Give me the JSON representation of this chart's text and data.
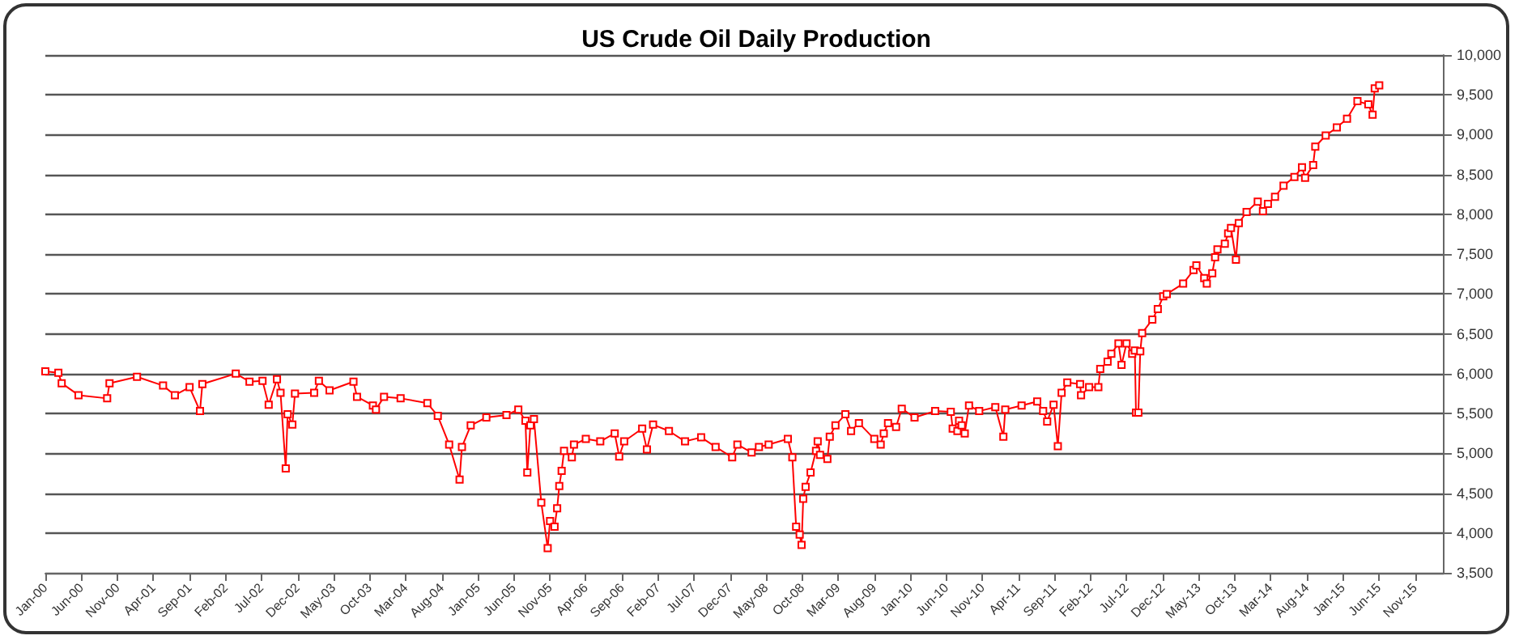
{
  "chart_data": {
    "type": "line",
    "title": "US Crude Oil Daily Production",
    "grid": "y",
    "marker": "square",
    "line_style": "solid",
    "xlim": [
      "2000-01-01",
      "2016-03-01"
    ],
    "xticks": [
      {
        "value": "2000-01",
        "label": "Jan-00"
      },
      {
        "value": "2000-06",
        "label": "Jun-00"
      },
      {
        "value": "2000-11",
        "label": "Nov-00"
      },
      {
        "value": "2001-04",
        "label": "Apr-01"
      },
      {
        "value": "2001-09",
        "label": "Sep-01"
      },
      {
        "value": "2002-02",
        "label": "Feb-02"
      },
      {
        "value": "2002-07",
        "label": "Jul-02"
      },
      {
        "value": "2002-12",
        "label": "Dec-02"
      },
      {
        "value": "2003-05",
        "label": "May-03"
      },
      {
        "value": "2003-10",
        "label": "Oct-03"
      },
      {
        "value": "2004-03",
        "label": "Mar-04"
      },
      {
        "value": "2004-08",
        "label": "Aug-04"
      },
      {
        "value": "2005-01",
        "label": "Jan-05"
      },
      {
        "value": "2005-06",
        "label": "Jun-05"
      },
      {
        "value": "2005-11",
        "label": "Nov-05"
      },
      {
        "value": "2006-04",
        "label": "Apr-06"
      },
      {
        "value": "2006-09",
        "label": "Sep-06"
      },
      {
        "value": "2007-02",
        "label": "Feb-07"
      },
      {
        "value": "2007-07",
        "label": "Jul-07"
      },
      {
        "value": "2007-12",
        "label": "Dec-07"
      },
      {
        "value": "2008-05",
        "label": "May-08"
      },
      {
        "value": "2008-10",
        "label": "Oct-08"
      },
      {
        "value": "2009-03",
        "label": "Mar-09"
      },
      {
        "value": "2009-08",
        "label": "Aug-09"
      },
      {
        "value": "2010-01",
        "label": "Jan-10"
      },
      {
        "value": "2010-06",
        "label": "Jun-10"
      },
      {
        "value": "2010-11",
        "label": "Nov-10"
      },
      {
        "value": "2011-04",
        "label": "Apr-11"
      },
      {
        "value": "2011-09",
        "label": "Sep-11"
      },
      {
        "value": "2012-02",
        "label": "Feb-12"
      },
      {
        "value": "2012-07",
        "label": "Jul-12"
      },
      {
        "value": "2012-12",
        "label": "Dec-12"
      },
      {
        "value": "2013-05",
        "label": "May-13"
      },
      {
        "value": "2013-10",
        "label": "Oct-13"
      },
      {
        "value": "2014-03",
        "label": "Mar-14"
      },
      {
        "value": "2014-08",
        "label": "Aug-14"
      },
      {
        "value": "2015-01",
        "label": "Jan-15"
      },
      {
        "value": "2015-06",
        "label": "Jun-15"
      },
      {
        "value": "2015-11",
        "label": "Nov-15"
      }
    ],
    "ylim": [
      3500,
      10000
    ],
    "yticks": [
      {
        "value": 3500,
        "label": "3,500"
      },
      {
        "value": 4000,
        "label": "4,000"
      },
      {
        "value": 4500,
        "label": "4,500"
      },
      {
        "value": 5000,
        "label": "5,000"
      },
      {
        "value": 5500,
        "label": "5,500"
      },
      {
        "value": 6000,
        "label": "6,000"
      },
      {
        "value": 6500,
        "label": "6,500"
      },
      {
        "value": 7000,
        "label": "7,000"
      },
      {
        "value": 7500,
        "label": "7,500"
      },
      {
        "value": 8000,
        "label": "8,000"
      },
      {
        "value": 8500,
        "label": "8,500"
      },
      {
        "value": 9000,
        "label": "9,000"
      },
      {
        "value": 9500,
        "label": "9,500"
      },
      {
        "value": 10000,
        "label": "10,000"
      }
    ],
    "series": [
      {
        "color": "#ff0000",
        "x": [
          "2000-01-01",
          "2000-02-25",
          "2000-03-10",
          "2000-05-20",
          "2000-09-18",
          "2000-09-28",
          "2001-01-22",
          "2001-05-12",
          "2001-07-01",
          "2001-09-01",
          "2001-10-15",
          "2001-10-25",
          "2002-03-15",
          "2002-05-12",
          "2002-07-06",
          "2002-08-01",
          "2002-09-05",
          "2002-09-20",
          "2002-10-12",
          "2002-10-20",
          "2002-11-09",
          "2002-11-20",
          "2003-02-09",
          "2003-03-01",
          "2003-04-15",
          "2003-07-25",
          "2003-08-09",
          "2003-10-15",
          "2003-10-28",
          "2003-12-01",
          "2004-02-09",
          "2004-06-01",
          "2004-07-15",
          "2004-09-01",
          "2004-10-15",
          "2004-10-25",
          "2004-12-01",
          "2005-02-05",
          "2005-05-01",
          "2005-06-20",
          "2005-07-20",
          "2005-07-28",
          "2005-08-10",
          "2005-08-25",
          "2005-09-25",
          "2005-10-22",
          "2005-11-01",
          "2005-11-20",
          "2005-12-01",
          "2005-12-10",
          "2005-12-20",
          "2005-12-30",
          "2006-02-01",
          "2006-02-10",
          "2006-04-01",
          "2006-06-01",
          "2006-08-01",
          "2006-08-20",
          "2006-09-10",
          "2006-11-25",
          "2006-12-15",
          "2007-01-10",
          "2007-03-18",
          "2007-05-25",
          "2007-08-01",
          "2007-10-01",
          "2007-12-10",
          "2008-01-01",
          "2008-03-01",
          "2008-04-01",
          "2008-05-12",
          "2008-08-01",
          "2008-08-20",
          "2008-09-05",
          "2008-09-20",
          "2008-09-28",
          "2008-10-05",
          "2008-10-15",
          "2008-11-05",
          "2008-11-28",
          "2008-12-05",
          "2008-12-15",
          "2009-01-15",
          "2009-01-25",
          "2009-02-18",
          "2009-04-01",
          "2009-04-25",
          "2009-05-28",
          "2009-08-01",
          "2009-08-28",
          "2009-09-10",
          "2009-09-28",
          "2009-11-01",
          "2009-11-25",
          "2010-01-18",
          "2010-04-15",
          "2010-06-20",
          "2010-06-28",
          "2010-07-18",
          "2010-07-25",
          "2010-08-05",
          "2010-08-18",
          "2010-09-05",
          "2010-10-18",
          "2010-12-25",
          "2011-01-28",
          "2011-02-05",
          "2011-04-15",
          "2011-06-20",
          "2011-07-15",
          "2011-08-01",
          "2011-08-28",
          "2011-09-15",
          "2011-10-01",
          "2011-10-25",
          "2011-12-18",
          "2011-12-22",
          "2012-01-25",
          "2012-03-04",
          "2012-03-12",
          "2012-04-12",
          "2012-04-28",
          "2012-05-28",
          "2012-06-10",
          "2012-07-01",
          "2012-07-25",
          "2012-08-05",
          "2012-08-10",
          "2012-08-20",
          "2012-08-28",
          "2012-09-05",
          "2012-10-18",
          "2012-11-10",
          "2012-12-03",
          "2012-12-18",
          "2013-02-25",
          "2013-04-10",
          "2013-04-22",
          "2013-05-25",
          "2013-06-05",
          "2013-06-28",
          "2013-07-10",
          "2013-07-20",
          "2013-08-20",
          "2013-09-03",
          "2013-09-15",
          "2013-10-06",
          "2013-10-18",
          "2013-11-20",
          "2014-01-06",
          "2014-01-28",
          "2014-02-18",
          "2014-03-20",
          "2014-04-25",
          "2014-06-10",
          "2014-07-12",
          "2014-07-25",
          "2014-08-28",
          "2014-09-06",
          "2014-10-20",
          "2014-12-06",
          "2015-01-18",
          "2015-03-03",
          "2015-04-18",
          "2015-05-06",
          "2015-05-15",
          "2015-06-03"
        ],
        "values": [
          6030,
          6010,
          5880,
          5730,
          5690,
          5880,
          5960,
          5850,
          5730,
          5830,
          5530,
          5870,
          6000,
          5900,
          5910,
          5610,
          5930,
          5760,
          4810,
          5490,
          5360,
          5750,
          5760,
          5910,
          5790,
          5900,
          5710,
          5600,
          5550,
          5710,
          5690,
          5630,
          5470,
          5110,
          4670,
          5080,
          5350,
          5450,
          5480,
          5550,
          5410,
          4760,
          5350,
          5430,
          4380,
          3810,
          4150,
          4080,
          4310,
          4590,
          4780,
          5030,
          4950,
          5110,
          5180,
          5150,
          5250,
          4960,
          5150,
          5310,
          5050,
          5360,
          5280,
          5150,
          5200,
          5080,
          4950,
          5110,
          5010,
          5080,
          5110,
          5180,
          4950,
          4080,
          3980,
          3850,
          4430,
          4580,
          4760,
          5030,
          5150,
          4980,
          4930,
          5210,
          5350,
          5490,
          5280,
          5380,
          5180,
          5110,
          5250,
          5380,
          5330,
          5560,
          5450,
          5530,
          5520,
          5310,
          5280,
          5410,
          5350,
          5250,
          5600,
          5530,
          5580,
          5210,
          5550,
          5600,
          5650,
          5530,
          5400,
          5610,
          5090,
          5760,
          5890,
          5870,
          5730,
          5830,
          5830,
          6060,
          6150,
          6250,
          6380,
          6110,
          6380,
          6250,
          6290,
          5510,
          5510,
          6280,
          6510,
          6680,
          6810,
          6970,
          7000,
          7130,
          7300,
          7360,
          7200,
          7130,
          7260,
          7460,
          7560,
          7630,
          7760,
          7830,
          7430,
          7890,
          8030,
          8160,
          8040,
          8130,
          8220,
          8360,
          8470,
          8590,
          8460,
          8620,
          8850,
          8990,
          9090,
          9200,
          9420,
          9380,
          9250,
          9580,
          9620
        ]
      }
    ]
  }
}
